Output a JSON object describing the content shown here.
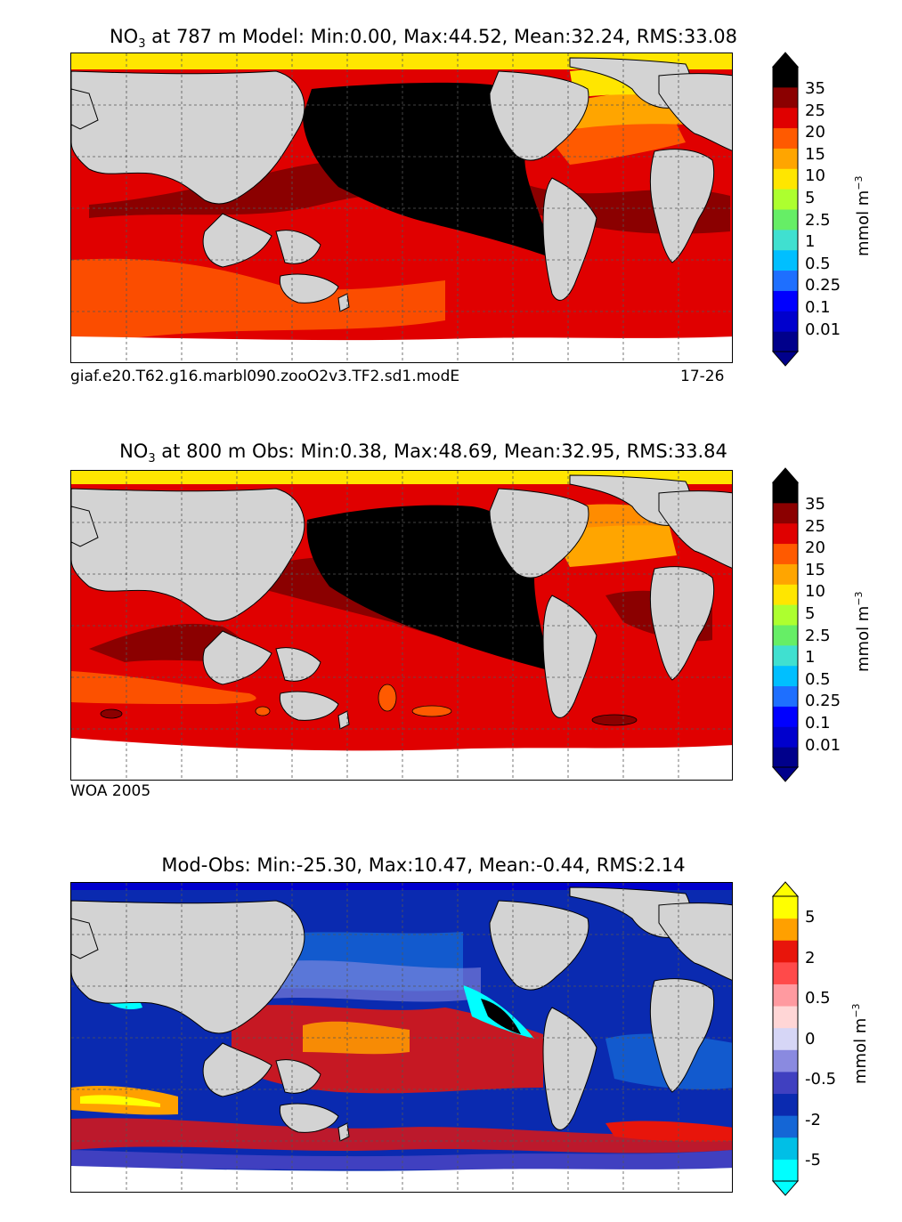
{
  "colors": {
    "land": "#d3d3d3",
    "seaice": "#ffffff",
    "conc_scale": [
      "#00008b",
      "#0000cd",
      "#0000ff",
      "#1e6fff",
      "#00bfff",
      "#40e0d0",
      "#66ee66",
      "#adff2f",
      "#ffe600",
      "#ffa500",
      "#ff5a00",
      "#e00000",
      "#8b0000",
      "#000000"
    ],
    "diff_scale": [
      "#00ffff",
      "#00bfe6",
      "#1466d6",
      "#0a2ab0",
      "#4040c0",
      "#8a8ae0",
      "#d6d6f6",
      "#ffd6d6",
      "#ff9aa0",
      "#ff4a4a",
      "#e8150b",
      "#ffa000",
      "#ffff00"
    ]
  },
  "panels": [
    {
      "id": "model",
      "title_prefix": "NO",
      "title_sub": "3",
      "title_suffix": " at 787 m Model: Min:0.00, Max:44.52, Mean:32.24, RMS:33.08",
      "caption_left": "giaf.e20.T62.g16.marbl090.zooO2v3.TF2.sd1.modE",
      "caption_right": "17-26",
      "colorbar": {
        "ticks": [
          "35",
          "25",
          "20",
          "15",
          "10",
          "5",
          "2.5",
          "1",
          "0.5",
          "0.25",
          "0.1",
          "0.01"
        ],
        "unit_base": "mmol m",
        "unit_exp": "−3"
      }
    },
    {
      "id": "obs",
      "title_prefix": "NO",
      "title_sub": "3",
      "title_suffix": " at 800 m Obs: Min:0.38, Max:48.69, Mean:32.95, RMS:33.84",
      "caption_left": "WOA 2005",
      "caption_right": "",
      "colorbar": {
        "ticks": [
          "35",
          "25",
          "20",
          "15",
          "10",
          "5",
          "2.5",
          "1",
          "0.5",
          "0.25",
          "0.1",
          "0.01"
        ],
        "unit_base": "mmol m",
        "unit_exp": "−3"
      }
    },
    {
      "id": "diff",
      "title": "Mod-Obs: Min:-25.30, Max:10.47, Mean:-0.44, RMS:2.14",
      "colorbar": {
        "ticks": [
          "5",
          "2",
          "0.5",
          "0",
          "-0.5",
          "-2",
          "-5"
        ],
        "unit_base": "mmol m",
        "unit_exp": "−3"
      }
    }
  ]
}
